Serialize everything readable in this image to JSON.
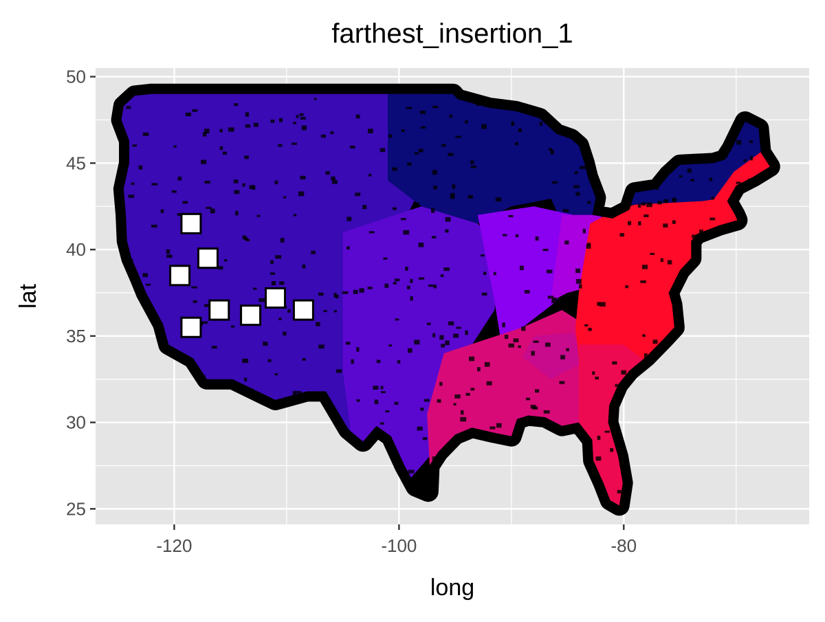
{
  "chart_data": {
    "type": "scatter",
    "title": "farthest_insertion_1",
    "xlabel": "long",
    "ylabel": "lat",
    "xlim": [
      -127,
      -63.5
    ],
    "ylim": [
      24.1,
      50.5
    ],
    "x_ticks": [
      -120,
      -100,
      -80
    ],
    "x_tick_labels": [
      "-120",
      "-100",
      "-80"
    ],
    "y_ticks": [
      25,
      30,
      35,
      40,
      45,
      50
    ],
    "y_tick_labels": [
      "25",
      "30",
      "35",
      "40",
      "45",
      "50"
    ],
    "grid": true,
    "legend": "none",
    "colors": {
      "panel_bg": "#e5e5e5",
      "grid": "#ffffff",
      "outline": "#000000",
      "tour_gradient": [
        "#0a0a78",
        "#3a0ab4",
        "#8a00f0",
        "#d80a78",
        "#ff0a28"
      ]
    },
    "series": [
      {
        "role": "route-outline",
        "points": [
          [
            -124.5,
            48.3
          ],
          [
            -123.5,
            48.9
          ],
          [
            -122,
            49.0
          ],
          [
            -118,
            49.0
          ],
          [
            -114,
            49.0
          ],
          [
            -110,
            49.0
          ],
          [
            -104,
            49.0
          ],
          [
            -100,
            49.0
          ],
          [
            -97,
            49.0
          ],
          [
            -95.2,
            49.0
          ],
          [
            -94.8,
            48.7
          ],
          [
            -92,
            48.2
          ],
          [
            -89.6,
            48.0
          ],
          [
            -87.5,
            47.6
          ],
          [
            -86,
            46.7
          ],
          [
            -84.7,
            46.4
          ],
          [
            -84,
            46.0
          ],
          [
            -83.5,
            45.0
          ],
          [
            -83.2,
            44.2
          ],
          [
            -82.5,
            43.0
          ],
          [
            -82.8,
            42.0
          ],
          [
            -81,
            41.8
          ],
          [
            -79.5,
            42.3
          ],
          [
            -79,
            43.3
          ],
          [
            -77,
            43.5
          ],
          [
            -76,
            44.3
          ],
          [
            -75,
            44.9
          ],
          [
            -72,
            45.0
          ],
          [
            -71,
            45.2
          ],
          [
            -70.4,
            45.8
          ],
          [
            -69.2,
            47.4
          ],
          [
            -68,
            47.0
          ],
          [
            -67.8,
            45.6
          ],
          [
            -67,
            44.8
          ],
          [
            -68.5,
            44.2
          ],
          [
            -70,
            43.7
          ],
          [
            -70.8,
            42.8
          ],
          [
            -70.1,
            42.0
          ],
          [
            -69.9,
            41.7
          ],
          [
            -71.5,
            41.4
          ],
          [
            -73.5,
            40.9
          ],
          [
            -74,
            40.5
          ],
          [
            -74,
            39.5
          ],
          [
            -75,
            38.8
          ],
          [
            -76,
            37.5
          ],
          [
            -75.7,
            36.8
          ],
          [
            -75.5,
            35.5
          ],
          [
            -76.5,
            34.8
          ],
          [
            -78,
            33.8
          ],
          [
            -79.5,
            33.0
          ],
          [
            -80.5,
            32.2
          ],
          [
            -81.3,
            31.0
          ],
          [
            -81.4,
            30.0
          ],
          [
            -80.5,
            28.0
          ],
          [
            -80.1,
            26.5
          ],
          [
            -80.4,
            25.2
          ],
          [
            -81.2,
            25.5
          ],
          [
            -81.8,
            26.5
          ],
          [
            -82.7,
            27.8
          ],
          [
            -82.8,
            29.0
          ],
          [
            -84,
            30.0
          ],
          [
            -85.5,
            29.8
          ],
          [
            -87,
            30.3
          ],
          [
            -88.5,
            30.4
          ],
          [
            -89.5,
            30.2
          ],
          [
            -90,
            29.2
          ],
          [
            -91.5,
            29.4
          ],
          [
            -93.5,
            29.7
          ],
          [
            -95,
            29.3
          ],
          [
            -96.5,
            28.3
          ],
          [
            -97.3,
            27.5
          ],
          [
            -97.4,
            26.0
          ],
          [
            -98.5,
            26.3
          ],
          [
            -99.5,
            27.5
          ],
          [
            -100.7,
            29.2
          ],
          [
            -102,
            29.8
          ],
          [
            -103.2,
            28.9
          ],
          [
            -104.5,
            29.6
          ],
          [
            -106.5,
            31.8
          ],
          [
            -108.2,
            31.8
          ],
          [
            -111,
            31.3
          ],
          [
            -114.8,
            32.5
          ],
          [
            -117.1,
            32.5
          ],
          [
            -118.3,
            33.7
          ],
          [
            -120.5,
            34.5
          ],
          [
            -121,
            35.7
          ],
          [
            -122.5,
            37.5
          ],
          [
            -123,
            38.3
          ],
          [
            -123.8,
            39.5
          ],
          [
            -124.2,
            40.5
          ],
          [
            -124.3,
            42.0
          ],
          [
            -124.5,
            43.5
          ],
          [
            -124,
            45.0
          ],
          [
            -124,
            46.3
          ],
          [
            -124.7,
            47.5
          ],
          [
            -124.5,
            48.3
          ]
        ]
      }
    ]
  }
}
